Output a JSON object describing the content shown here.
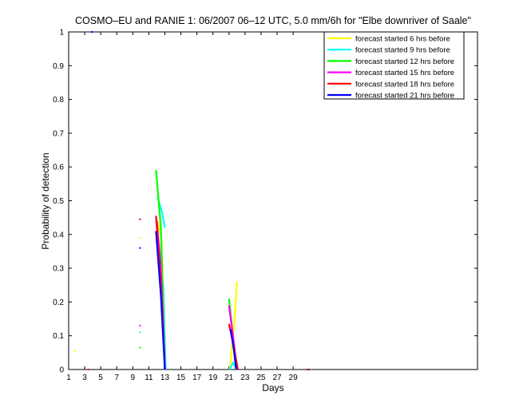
{
  "chart_data": {
    "type": "line",
    "title": "COSMO–EU and RANIE 1: 06/2007 06–12 UTC, 5.0 mm/6h for \"Elbe downriver of Saale\"",
    "xlabel": "Days",
    "ylabel": "Probability of detection",
    "xlim": [
      1,
      52
    ],
    "ylim": [
      0,
      1
    ],
    "x_ticks": [
      1,
      3,
      5,
      7,
      9,
      11,
      13,
      15,
      17,
      19,
      21,
      23,
      25,
      27,
      29
    ],
    "y_ticks": [
      0,
      0.1,
      0.2,
      0.3,
      0.4,
      0.5,
      0.6,
      0.7,
      0.8,
      0.9,
      1
    ],
    "y_tick_labels": [
      "0",
      "0.1",
      "0.2",
      "0.3",
      "0.4",
      "0.5",
      "0.6",
      "0.7",
      "0.8",
      "0.9",
      "1"
    ],
    "grid": false,
    "legend_position": "top-right",
    "series": [
      {
        "name": "forecast started 6 hrs before",
        "color": "#ffff00",
        "segments": [
          [
            [
              12.1,
              0.44
            ],
            [
              12.6,
              0.38
            ],
            [
              13.0,
              0.0
            ]
          ],
          [
            [
              21.1,
              0.0
            ],
            [
              21.6,
              0.12
            ],
            [
              22.0,
              0.26
            ]
          ]
        ],
        "dots": [
          [
            1.8,
            0.055
          ],
          [
            9.9,
            0.39
          ],
          [
            31.1,
            0.002
          ]
        ]
      },
      {
        "name": "forecast started 9 hrs before",
        "color": "#00ffff",
        "segments": [
          [
            [
              12.1,
              0.51
            ],
            [
              12.6,
              0.47
            ],
            [
              13.0,
              0.42
            ]
          ],
          [
            [
              12.4,
              0.35
            ],
            [
              12.8,
              0.24
            ],
            [
              13.1,
              0.0
            ]
          ],
          [
            [
              21.1,
              0.0
            ],
            [
              21.5,
              0.02
            ],
            [
              22.0,
              0.0
            ]
          ]
        ],
        "dots": [
          [
            9.9,
            0.11
          ]
        ]
      },
      {
        "name": "forecast started 12 hrs before",
        "color": "#00ff00",
        "segments": [
          [
            [
              11.9,
              0.59
            ],
            [
              12.5,
              0.42
            ],
            [
              13.0,
              0.0
            ]
          ],
          [
            [
              21.0,
              0.21
            ],
            [
              21.4,
              0.12
            ],
            [
              21.9,
              0.0
            ]
          ]
        ],
        "dots": [
          [
            9.9,
            0.065
          ]
        ]
      },
      {
        "name": "forecast started 15 hrs before",
        "color": "#ff00ff",
        "segments": [
          [
            [
              12.0,
              0.44
            ],
            [
              12.5,
              0.3
            ],
            [
              13.0,
              0.0
            ]
          ],
          [
            [
              21.0,
              0.19
            ],
            [
              21.5,
              0.1
            ],
            [
              22.0,
              0.0
            ]
          ]
        ],
        "dots": [
          [
            9.9,
            0.13
          ]
        ]
      },
      {
        "name": "forecast started 18 hrs before",
        "color": "#ff0000",
        "segments": [
          [
            [
              11.9,
              0.455
            ],
            [
              12.5,
              0.25
            ],
            [
              13.0,
              0.0
            ]
          ],
          [
            [
              21.0,
              0.135
            ],
            [
              21.5,
              0.08
            ],
            [
              22.1,
              0.0
            ]
          ]
        ],
        "dots": [
          [
            9.9,
            0.445
          ],
          [
            3.5,
            0.0
          ],
          [
            30.8,
            0.0
          ]
        ]
      },
      {
        "name": "forecast started 21 hrs before",
        "color": "#0000ff",
        "segments": [
          [
            [
              11.9,
              0.41
            ],
            [
              12.5,
              0.22
            ],
            [
              13.0,
              0.0
            ]
          ],
          [
            [
              21.2,
              0.12
            ],
            [
              21.6,
              0.06
            ],
            [
              21.9,
              0.0
            ]
          ]
        ],
        "dots": [
          [
            9.9,
            0.36
          ],
          [
            3.9,
            1.0
          ],
          [
            31.0,
            0.0
          ]
        ]
      }
    ]
  }
}
